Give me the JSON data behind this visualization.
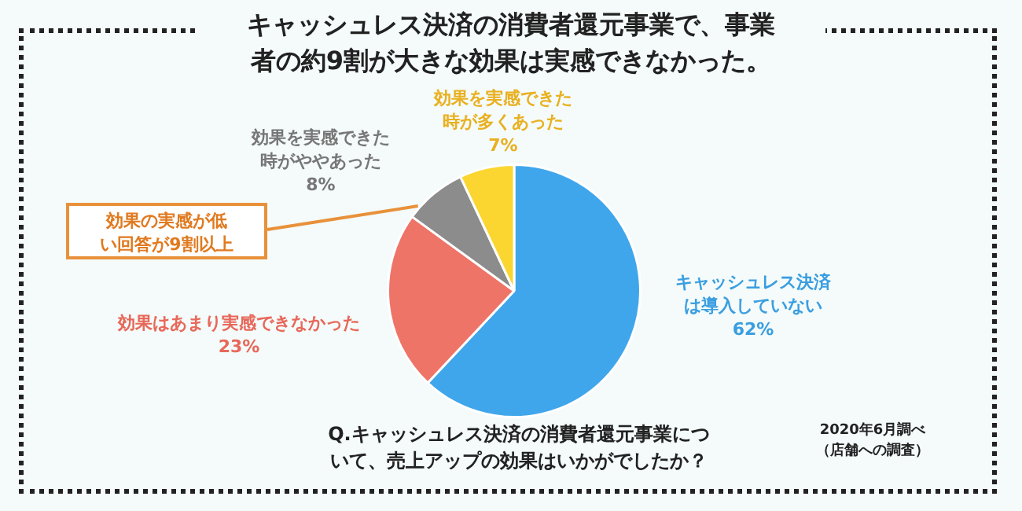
{
  "chart_data": {
    "type": "pie",
    "title": "キャッシュレス決済の消費者還元事業で、事業者の約9割が大きな効果は実感できなかった。",
    "categories": [
      "キャッシュレス決済は導入していない",
      "効果はあまり実感できなかった",
      "効果を実感できた時がややあった",
      "効果を実感できた時が多くあった"
    ],
    "values": [
      62,
      23,
      8,
      7
    ],
    "colors": [
      "#3fa6ec",
      "#ee7468",
      "#8c8c8c",
      "#fbd631"
    ],
    "value_labels": [
      "62%",
      "23%",
      "8%",
      "7%"
    ],
    "legend": false,
    "annotations": [
      "効果の実感が低い回答が9割以上",
      "Q.キャッシュレス決済の消費者還元事業について、売上アップの効果はいかがでしたか？",
      "2020年6月調べ（店舗への調査）"
    ]
  }
}
